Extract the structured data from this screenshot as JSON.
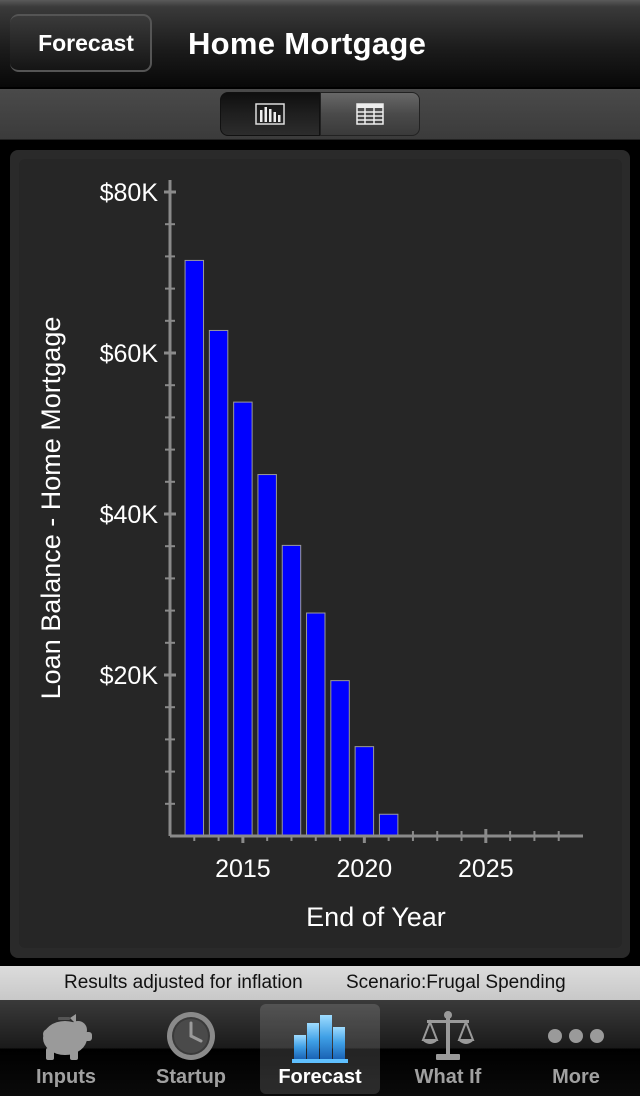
{
  "nav": {
    "back_label": "Forecast",
    "title": "Home Mortgage"
  },
  "segments": {
    "chart_icon": "bar-chart-icon",
    "table_icon": "table-icon",
    "selected": "chart"
  },
  "chart_data": {
    "type": "bar",
    "xlabel": "End of Year",
    "ylabel": "Loan Balance - Home Mortgage",
    "x": [
      2013,
      2014,
      2015,
      2016,
      2017,
      2018,
      2019,
      2020,
      2021
    ],
    "values": [
      71500,
      62800,
      53900,
      44900,
      36100,
      27700,
      19300,
      11100,
      2700
    ],
    "xlim": [
      2012,
      2029
    ],
    "ylim": [
      0,
      80000
    ],
    "yticks": [
      20000,
      40000,
      60000,
      80000
    ],
    "ytick_labels": [
      "$20K",
      "$40K",
      "$60K",
      "$80K"
    ],
    "xticks": [
      2015,
      2020,
      2025
    ],
    "xtick_labels": [
      "2015",
      "2020",
      "2025"
    ],
    "bar_color": "#0000ff",
    "axis_color": "#8a8a8a",
    "text_color": "#ffffff"
  },
  "status": {
    "inflation_note": "Results adjusted for inflation",
    "scenario": "Scenario:Frugal Spending"
  },
  "tabs": [
    {
      "label": "Inputs",
      "icon": "piggy-bank-icon",
      "active": false
    },
    {
      "label": "Startup",
      "icon": "clock-icon",
      "active": false
    },
    {
      "label": "Forecast",
      "icon": "bar-chart-icon",
      "active": true
    },
    {
      "label": "What If",
      "icon": "scales-icon",
      "active": false
    },
    {
      "label": "More",
      "icon": "more-dots-icon",
      "active": false
    }
  ]
}
